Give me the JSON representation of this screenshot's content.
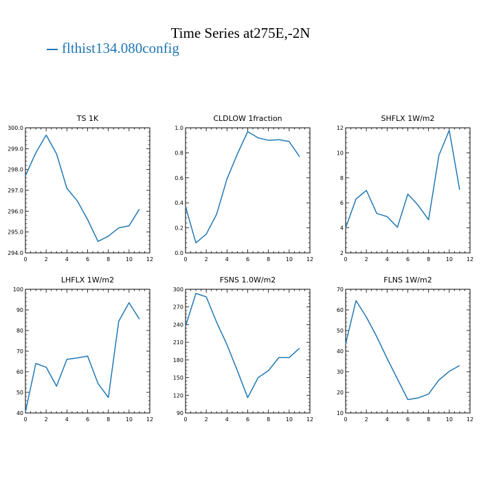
{
  "title": "Time Series at275E,-2N",
  "legend": {
    "label": "flthist134.080config",
    "color": "#1f77b4"
  },
  "chart_data": [
    {
      "type": "line",
      "title": "TS   1K",
      "x": [
        0,
        1,
        2,
        3,
        4,
        5,
        6,
        7,
        8,
        9,
        10,
        11
      ],
      "y": [
        297.7,
        298.8,
        299.65,
        298.75,
        297.1,
        296.5,
        295.6,
        294.55,
        294.8,
        295.2,
        295.3,
        296.1
      ],
      "xlim": [
        0,
        12
      ],
      "ylim": [
        294,
        300
      ],
      "xticks": [
        0,
        2,
        4,
        6,
        8,
        10,
        12
      ],
      "yticks": [
        294,
        295,
        296,
        297,
        298,
        299,
        300
      ],
      "ytick_labels": [
        "294.0",
        "295.0",
        "296.0",
        "297.0",
        "298.0",
        "299.0",
        "300.0"
      ],
      "color": "#1f77b4"
    },
    {
      "type": "line",
      "title": "CLDLOW   1fraction",
      "x": [
        0,
        1,
        2,
        3,
        4,
        5,
        6,
        7,
        8,
        9,
        10,
        11
      ],
      "y": [
        0.37,
        0.08,
        0.15,
        0.31,
        0.59,
        0.79,
        0.97,
        0.92,
        0.9,
        0.905,
        0.89,
        0.77
      ],
      "xlim": [
        0,
        12
      ],
      "ylim": [
        0,
        1
      ],
      "xticks": [
        0,
        2,
        4,
        6,
        8,
        10,
        12
      ],
      "yticks": [
        0,
        0.2,
        0.4,
        0.6,
        0.8,
        1.0
      ],
      "ytick_labels": [
        "0.0",
        "0.2",
        "0.4",
        "0.6",
        "0.8",
        "1.0"
      ],
      "color": "#1f77b4"
    },
    {
      "type": "line",
      "title": "SHFLX   1W/m2",
      "x": [
        0,
        1,
        2,
        3,
        4,
        5,
        6,
        7,
        8,
        9,
        10,
        11
      ],
      "y": [
        4.0,
        6.3,
        7.0,
        5.15,
        4.9,
        4.05,
        6.7,
        5.8,
        4.65,
        9.8,
        11.8,
        7.05
      ],
      "xlim": [
        0,
        12
      ],
      "ylim": [
        2,
        12
      ],
      "xticks": [
        0,
        2,
        4,
        6,
        8,
        10,
        12
      ],
      "yticks": [
        2,
        4,
        6,
        8,
        10,
        12
      ],
      "ytick_labels": [
        "2",
        "4",
        "6",
        "8",
        "10",
        "12"
      ],
      "color": "#1f77b4"
    },
    {
      "type": "line",
      "title": "LHFLX   1W/m2",
      "x": [
        0,
        1,
        2,
        3,
        4,
        5,
        6,
        7,
        8,
        9,
        10,
        11
      ],
      "y": [
        40.5,
        64.0,
        62.2,
        53.0,
        66.0,
        66.7,
        67.6,
        54.3,
        47.5,
        84.5,
        93.5,
        85.5
      ],
      "xlim": [
        0,
        12
      ],
      "ylim": [
        40,
        100
      ],
      "xticks": [
        0,
        2,
        4,
        6,
        8,
        10,
        12
      ],
      "yticks": [
        40,
        50,
        60,
        70,
        80,
        90,
        100
      ],
      "ytick_labels": [
        "40",
        "50",
        "60",
        "70",
        "80",
        "90",
        "100"
      ],
      "color": "#1f77b4"
    },
    {
      "type": "line",
      "title": "FSNS   1.0W/m2",
      "x": [
        0,
        1,
        2,
        3,
        4,
        5,
        6,
        7,
        8,
        9,
        10,
        11
      ],
      "y": [
        237,
        293,
        287,
        244,
        206,
        162,
        116,
        150,
        162,
        184,
        184,
        200
      ],
      "xlim": [
        0,
        12
      ],
      "ylim": [
        90,
        300
      ],
      "xticks": [
        0,
        2,
        4,
        6,
        8,
        10,
        12
      ],
      "yticks": [
        90,
        120,
        150,
        180,
        210,
        240,
        270,
        300
      ],
      "ytick_labels": [
        "90",
        "120",
        "150",
        "180",
        "210",
        "240",
        "270",
        "300"
      ],
      "color": "#1f77b4"
    },
    {
      "type": "line",
      "title": "FLNS   1W/m2",
      "x": [
        0,
        1,
        2,
        3,
        4,
        5,
        6,
        7,
        8,
        9,
        10,
        11
      ],
      "y": [
        43.5,
        64.5,
        56.5,
        47.0,
        36.5,
        26.5,
        16.5,
        17.3,
        19.2,
        26.0,
        30.2,
        33.0
      ],
      "xlim": [
        0,
        12
      ],
      "ylim": [
        10,
        70
      ],
      "xticks": [
        0,
        2,
        4,
        6,
        8,
        10,
        12
      ],
      "yticks": [
        10,
        20,
        30,
        40,
        50,
        60,
        70
      ],
      "ytick_labels": [
        "10",
        "20",
        "30",
        "40",
        "50",
        "60",
        "70"
      ],
      "color": "#1f77b4"
    }
  ]
}
